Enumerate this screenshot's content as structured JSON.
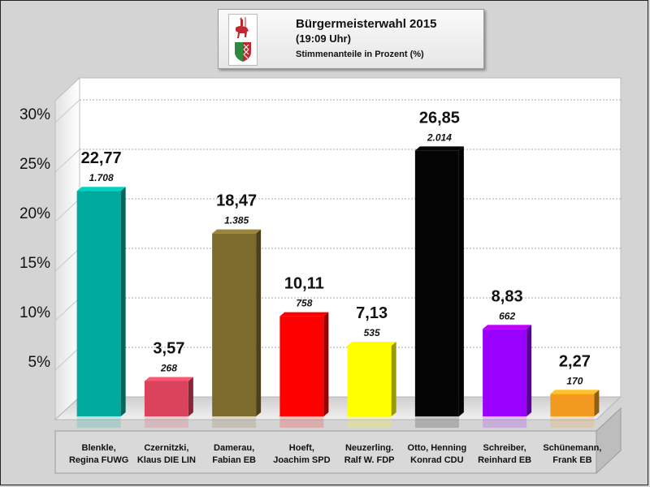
{
  "header": {
    "title": "Bürgermeisterwahl 2015",
    "time": "(19:09 Uhr)",
    "subtitle": "Stimmenanteile in Prozent (%)"
  },
  "chart_data": {
    "type": "bar",
    "title": "Bürgermeisterwahl 2015",
    "subtitle": "Stimmenanteile in Prozent (%)",
    "categories": [
      [
        "Blenkle,",
        "Regina FUWG"
      ],
      [
        "Czernitzki,",
        "Klaus DIE LIN"
      ],
      [
        "Damerau,",
        "Fabian EB"
      ],
      [
        "Hoeft,",
        "Joachim SPD"
      ],
      [
        "Neuzerling.",
        "Ralf W. FDP"
      ],
      [
        "Otto, Henning",
        "Konrad CDU"
      ],
      [
        "Schreiber,",
        "Reinhard EB"
      ],
      [
        "Schünemann,",
        "Frank EB"
      ]
    ],
    "values": [
      22.77,
      3.57,
      18.47,
      10.11,
      7.13,
      26.85,
      8.83,
      2.27
    ],
    "value_labels": [
      "22,77",
      "3,57",
      "18,47",
      "10,11",
      "7,13",
      "26,85",
      "8,83",
      "2,27"
    ],
    "vote_labels": [
      "1.708",
      "268",
      "1.385",
      "758",
      "535",
      "2.014",
      "662",
      "170"
    ],
    "colors": [
      "#00a99d",
      "#d9435b",
      "#7d6b2e",
      "#ff0000",
      "#ffff00",
      "#050505",
      "#9900ff",
      "#f29a1f"
    ],
    "yticks": [
      "5%",
      "10%",
      "15%",
      "20%",
      "25%",
      "30%"
    ],
    "ylim": [
      0,
      30
    ],
    "grid": true,
    "legend": "none"
  }
}
